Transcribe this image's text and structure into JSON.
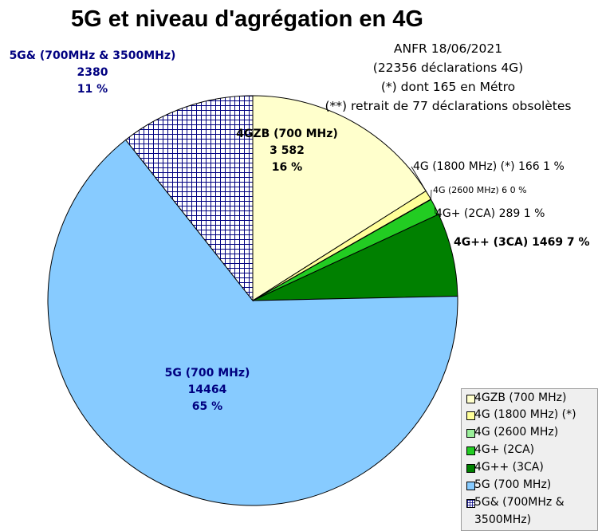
{
  "chart_data": {
    "type": "pie",
    "title": "5G et niveau d'agrégation en 4G",
    "subtitle_lines": [
      "ANFR 18/06/2021",
      "(22356 déclarations 4G)",
      "(*) dont 165 en Métro",
      "(**) retrait de 77 déclarations obsolètes"
    ],
    "start_angle_deg": 0,
    "legend_position": "bottom-right",
    "slices": [
      {
        "name": "4GZB (700 MHz)",
        "value": 3582,
        "color": "#ffffcc",
        "pattern": "none",
        "label_lines": [
          "4GZB (700 MHz)",
          "3 582",
          "16 %"
        ]
      },
      {
        "name": "4G (1800 MHz) (*)",
        "value": 166,
        "color": "#ffff99",
        "pattern": "none",
        "label_lines": [
          "4G (1800 MHz) (*) 166 1 %"
        ]
      },
      {
        "name": "4G (2600 MHz)",
        "value": 6,
        "color": "#99ee99",
        "pattern": "none",
        "label_lines": [
          "4G (2600 MHz) 6 0 %"
        ]
      },
      {
        "name": "4G+ (2CA)",
        "value": 289,
        "color": "#22cc22",
        "pattern": "none",
        "label_lines": [
          "4G+ (2CA) 289 1 %"
        ]
      },
      {
        "name": "4G++ (3CA)",
        "value": 1469,
        "color": "#008000",
        "pattern": "none",
        "label_lines": [
          "4G++ (3CA) 1469 7 %"
        ]
      },
      {
        "name": "5G (700 MHz)",
        "value": 14464,
        "color": "#87cbff",
        "pattern": "none",
        "label_lines": [
          "5G (700 MHz)",
          "14464",
          "65 %"
        ]
      },
      {
        "name": "5G& (700MHz & 3500MHz)",
        "value": 2380,
        "color": "#ffffff",
        "pattern": "grid",
        "label_lines": [
          "5G& (700MHz & 3500MHz)",
          "2380",
          "11 %"
        ]
      }
    ],
    "legend": [
      "4GZB (700 MHz)",
      "4G (1800 MHz) (*)",
      "4G (2600 MHz)",
      "4G+ (2CA)",
      "4G++ (3CA)",
      "5G (700 MHz)",
      "5G& (700MHz &",
      "3500MHz)"
    ]
  }
}
